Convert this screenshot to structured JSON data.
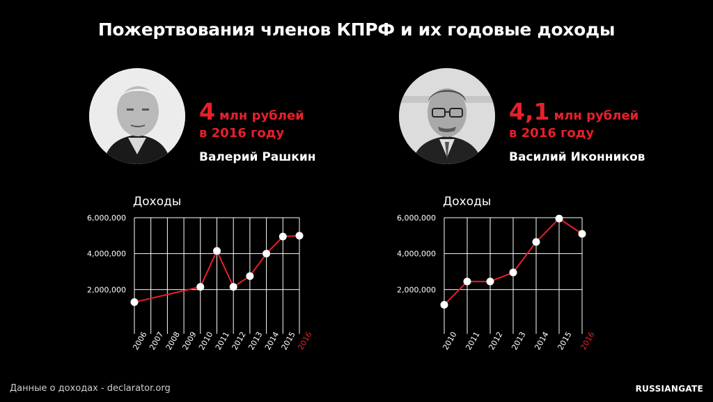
{
  "title": "Пожертвования членов КПРФ и их годовые доходы",
  "persons": [
    {
      "amount_number": "4",
      "amount_unit": "млн рублей",
      "amount_year": "в 2016 году",
      "name": "Валерий Рашкин"
    },
    {
      "amount_number": "4,1",
      "amount_unit": "млн рублей",
      "amount_year": "в 2016 году",
      "name": "Василий Иконников"
    }
  ],
  "chart_data": [
    {
      "type": "line",
      "title": "Доходы",
      "categories": [
        "2006",
        "2007",
        "2008",
        "2009",
        "2010",
        "2011",
        "2012",
        "2013",
        "2014",
        "2015",
        "2016"
      ],
      "series": [
        {
          "values": [
            1300000,
            null,
            null,
            null,
            2150000,
            4150000,
            2150000,
            2750000,
            4000000,
            4950000,
            5000000
          ]
        }
      ],
      "y_ticks": [
        "2,000,000",
        "4,000,000",
        "6,000,000"
      ],
      "ylim": [
        0,
        6000000
      ],
      "highlight_category": "2016",
      "grid": true
    },
    {
      "type": "line",
      "title": "Доходы",
      "categories": [
        "2010",
        "2011",
        "2012",
        "2013",
        "2014",
        "2015",
        "2016"
      ],
      "series": [
        {
          "values": [
            1150000,
            2450000,
            2450000,
            2950000,
            4650000,
            5950000,
            5100000
          ]
        }
      ],
      "y_ticks": [
        "2,000,000",
        "4,000,000",
        "6,000,000"
      ],
      "ylim": [
        0,
        6000000
      ],
      "highlight_category": "2016",
      "grid": true
    }
  ],
  "colors": {
    "accent": "#e8202a",
    "background": "#000000",
    "grid": "#ffffff",
    "point": "#ffffff"
  },
  "footer": {
    "source": "Данные о доходах - declarator.org",
    "brand": "RUSSIANGATE"
  }
}
